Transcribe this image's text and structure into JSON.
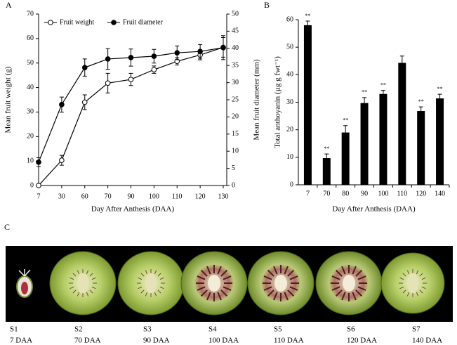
{
  "chart_data": [
    {
      "type": "line",
      "panel": "A",
      "x_label": "Day After Anthesis (DAA)",
      "y_label": "Mean fruit weight (g)",
      "y2_label": "Mean fruit diameter (mm)",
      "categories": [
        "7",
        "30",
        "60",
        "70",
        "90",
        "100",
        "110",
        "120",
        "130"
      ],
      "ylim": [
        0,
        70
      ],
      "yticks": [
        0,
        10,
        20,
        30,
        40,
        50,
        60,
        70
      ],
      "y2lim": [
        0,
        50
      ],
      "y2ticks": [
        0,
        5,
        10,
        15,
        20,
        25,
        30,
        35,
        40,
        45,
        50
      ],
      "series": [
        {
          "name": "Fruit weight",
          "color": "#000000",
          "marker": "open",
          "values": [
            0,
            10.3,
            34,
            41.8,
            43.3,
            47.3,
            50.7,
            53.3,
            56.4
          ],
          "errors": [
            0,
            2,
            3,
            4,
            2.5,
            1.5,
            1.5,
            2,
            4
          ]
        },
        {
          "name": "Fruit diameter",
          "color": "#000000",
          "marker": "filled",
          "axis": "y2",
          "values": [
            6.8,
            23.6,
            34.4,
            36.9,
            37.3,
            37.7,
            38.7,
            39.1,
            40.2
          ],
          "errors": [
            1.3,
            2.2,
            2.5,
            3,
            2.5,
            2,
            2,
            2,
            3.5
          ]
        }
      ]
    },
    {
      "type": "bar",
      "panel": "B",
      "x_label": "Day After Anthesis (DAA)",
      "y_label": "Total anthoyanin (µg g fwt⁻¹)",
      "categories": [
        "7",
        "70",
        "80",
        "90",
        "100",
        "110",
        "120",
        "140"
      ],
      "values": [
        58,
        9.7,
        19,
        29.7,
        33,
        44.3,
        26.8,
        31.4
      ],
      "errors": [
        1.5,
        1.5,
        2.5,
        2,
        1.3,
        2.5,
        1.5,
        1.5
      ],
      "significance": [
        "**",
        "**",
        "**",
        "**",
        "**",
        null,
        "**",
        "**"
      ],
      "color": "#000000",
      "ylim": [
        0,
        60
      ],
      "yticks": [
        0,
        10,
        20,
        30,
        40,
        50,
        60
      ]
    }
  ],
  "photo": {
    "panel": "C",
    "stages": [
      {
        "stage": "S1",
        "day": "7 DAA"
      },
      {
        "stage": "S2",
        "day": "70 DAA"
      },
      {
        "stage": "S3",
        "day": "90 DAA"
      },
      {
        "stage": "S4",
        "day": "100 DAA"
      },
      {
        "stage": "S5",
        "day": "110 DAA"
      },
      {
        "stage": "S6",
        "day": "120 DAA"
      },
      {
        "stage": "S7",
        "day": "140 DAA"
      }
    ]
  }
}
